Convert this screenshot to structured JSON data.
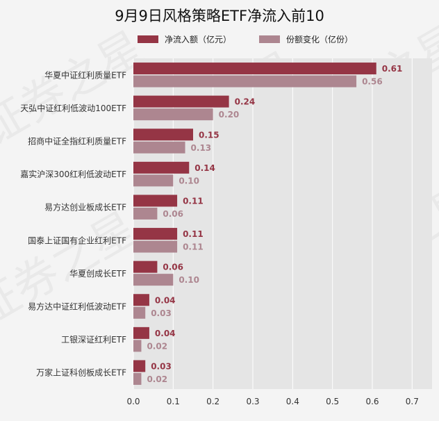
{
  "chart_data": {
    "type": "bar",
    "orientation": "horizontal",
    "title": "9月9日风格策略ETF净流入前10",
    "xlabel": "",
    "ylabel": "",
    "xlim": [
      0,
      0.75
    ],
    "xticks": [
      "0.0",
      "0.1",
      "0.2",
      "0.3",
      "0.4",
      "0.5",
      "0.6",
      "0.7"
    ],
    "grid": true,
    "legend_position": "top",
    "categories": [
      "华夏中证红利质量ETF",
      "天弘中证红利低波动100ETF",
      "招商中证全指红利质量ETF",
      "嘉实沪深300红利低波动ETF",
      "易方达创业板成长ETF",
      "国泰上证国有企业红利ETF",
      "华夏创成长ETF",
      "易方达中证红利低波动ETF",
      "工银深证红利ETF",
      "万家上证科创板成长ETF"
    ],
    "series": [
      {
        "name": "净流入额（亿元）",
        "color": "#953545",
        "values": [
          0.61,
          0.24,
          0.15,
          0.14,
          0.11,
          0.11,
          0.06,
          0.04,
          0.04,
          0.03
        ],
        "labels": [
          "0.61",
          "0.24",
          "0.15",
          "0.14",
          "0.11",
          "0.11",
          "0.06",
          "0.04",
          "0.04",
          "0.03"
        ]
      },
      {
        "name": "份额变化（亿份）",
        "color": "#ad8690",
        "values": [
          0.56,
          0.2,
          0.13,
          0.1,
          0.06,
          0.11,
          0.1,
          0.03,
          0.02,
          0.02
        ],
        "labels": [
          "0.56",
          "0.20",
          "0.13",
          "0.10",
          "0.06",
          "0.11",
          "0.10",
          "0.03",
          "0.02",
          "0.02"
        ]
      }
    ],
    "watermark": "证券之星"
  }
}
